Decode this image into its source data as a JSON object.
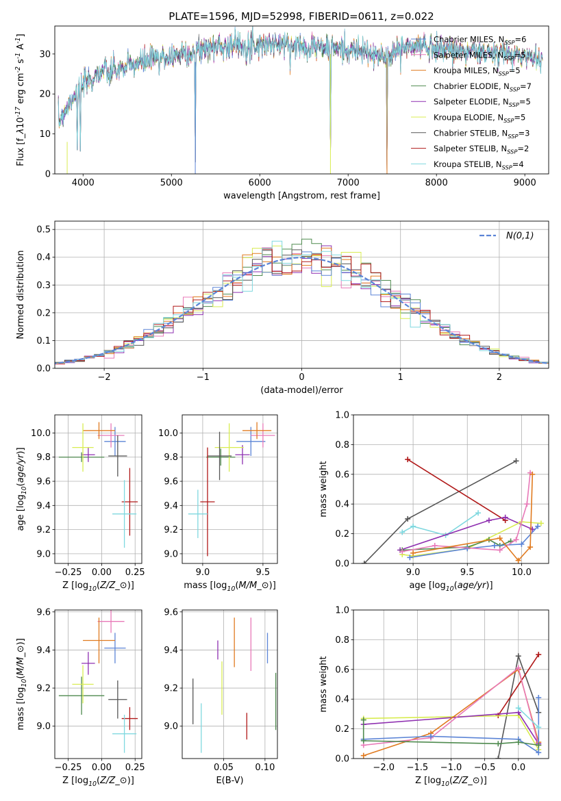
{
  "title": "PLATE=1596, MJD=52998, FIBERID=0611, z=0.022",
  "colors": {
    "Chabrier MILES": "#5b84d6",
    "Salpeter MILES": "#e879b8",
    "Kroupa MILES": "#e07a1f",
    "Chabrier ELODIE": "#4e8a4e",
    "Salpeter ELODIE": "#8e2fb0",
    "Kroupa ELODIE": "#d8ec50",
    "Chabrier STELIB": "#555555",
    "Salpeter STELIB": "#b01818",
    "Kroupa STELIB": "#7fd8df",
    "normal_curve": "#5b84d6"
  },
  "chart_data": [
    {
      "type": "line",
      "name": "spectrum",
      "xlabel": "wavelength [Angstrom, rest frame]",
      "ylabel": "Flux [f$_\\lambda$10$^{-17}$ erg cm$^{-2}$ s$^{-1}$ A$^{-1}$]",
      "xlim": [
        3680,
        9270
      ],
      "ylim": [
        0,
        37
      ],
      "xticks": [
        4000,
        5000,
        6000,
        7000,
        8000,
        9000
      ],
      "yticks": [
        0,
        10,
        20,
        30
      ],
      "legend_position": "upper-right",
      "legend": [
        {
          "label": "Chabrier MILES, N$_{SSP}$=6"
        },
        {
          "label": "Salpeter MILES, N$_{SSP}$=5"
        },
        {
          "label": "Kroupa MILES, N$_{SSP}$=5"
        },
        {
          "label": "Chabrier ELODIE, N$_{SSP}$=7"
        },
        {
          "label": "Salpeter ELODIE, N$_{SSP}$=5"
        },
        {
          "label": "Kroupa ELODIE, N$_{SSP}$=5"
        },
        {
          "label": "Chabrier STELIB, N$_{SSP}$=3"
        },
        {
          "label": "Salpeter STELIB, N$_{SSP}$=2"
        },
        {
          "label": "Kroupa STELIB, N$_{SSP}$=4"
        }
      ],
      "continuum": [
        [
          3720,
          13
        ],
        [
          3800,
          16
        ],
        [
          3900,
          20
        ],
        [
          4000,
          22
        ],
        [
          4100,
          24
        ],
        [
          4200,
          25.5
        ],
        [
          4400,
          26
        ],
        [
          4600,
          27.5
        ],
        [
          4800,
          29
        ],
        [
          5000,
          29.5
        ],
        [
          5200,
          30.5
        ],
        [
          5400,
          31.5
        ],
        [
          5600,
          32
        ],
        [
          5800,
          32.5
        ],
        [
          6000,
          32.5
        ],
        [
          6200,
          32.5
        ],
        [
          6400,
          32
        ],
        [
          6600,
          32
        ],
        [
          6800,
          31.5
        ],
        [
          7000,
          31
        ],
        [
          7200,
          30.5
        ],
        [
          7400,
          29
        ],
        [
          7600,
          31.5
        ],
        [
          7800,
          32
        ],
        [
          8000,
          31.5
        ],
        [
          8200,
          31
        ],
        [
          8400,
          30.5
        ],
        [
          8600,
          30
        ],
        [
          8800,
          30
        ],
        [
          9000,
          29.5
        ],
        [
          9200,
          29
        ]
      ],
      "dips": [
        [
          3934,
          5
        ],
        [
          3969,
          5
        ],
        [
          4101,
          20
        ],
        [
          4300,
          21
        ],
        [
          4861,
          24
        ],
        [
          5175,
          26
        ],
        [
          5270,
          0
        ],
        [
          5890,
          27
        ],
        [
          6563,
          29
        ],
        [
          6800,
          0
        ],
        [
          7250,
          30
        ],
        [
          7440,
          0
        ]
      ]
    },
    {
      "type": "bar",
      "name": "residual-histogram",
      "xlabel": "(data-model)/error",
      "ylabel": "Normed distribution",
      "xlim": [
        -2.5,
        2.5
      ],
      "ylim": [
        0,
        0.53
      ],
      "xticks": [
        -2,
        -1,
        0,
        1,
        2
      ],
      "yticks": [
        0.0,
        0.1,
        0.2,
        0.3,
        0.4,
        0.5
      ],
      "legend_position": "upper-right",
      "normal_label": "$\\mathcal{N}(0,1)$",
      "bin_width": 0.1
    },
    {
      "type": "scatter",
      "name": "age-vs-Z",
      "xlabel": "Z [log$_{10}$($Z/Z_\\odot$)]",
      "ylabel": "age  [log$_{10}$($age/yr$)]",
      "xlim": [
        -0.35,
        0.3
      ],
      "ylim": [
        8.92,
        10.15
      ],
      "xticks": [
        -0.25,
        0.0,
        0.25
      ],
      "yticks": [
        9.0,
        9.2,
        9.4,
        9.6,
        9.8,
        10.0
      ],
      "points": [
        {
          "model": "Chabrier MILES",
          "x": 0.1,
          "xerr": 0.08,
          "y": 9.93,
          "yerr": 0.12
        },
        {
          "model": "Salpeter MILES",
          "x": 0.07,
          "xerr": 0.1,
          "y": 9.98,
          "yerr": 0.1
        },
        {
          "model": "Kroupa MILES",
          "x": -0.02,
          "xerr": 0.12,
          "y": 10.02,
          "yerr": 0.07
        },
        {
          "model": "Chabrier ELODIE",
          "x": -0.15,
          "xerr": 0.17,
          "y": 9.8,
          "yerr": 0.04
        },
        {
          "model": "Salpeter ELODIE",
          "x": -0.1,
          "xerr": 0.05,
          "y": 9.82,
          "yerr": 0.06
        },
        {
          "model": "Kroupa ELODIE",
          "x": -0.14,
          "xerr": 0.08,
          "y": 9.88,
          "yerr": 0.2
        },
        {
          "model": "Chabrier STELIB",
          "x": 0.12,
          "xerr": 0.07,
          "y": 9.81,
          "yerr": 0.17
        },
        {
          "model": "Salpeter STELIB",
          "x": 0.21,
          "xerr": 0.06,
          "y": 9.43,
          "yerr": 0.28
        },
        {
          "model": "Kroupa STELIB",
          "x": 0.17,
          "xerr": 0.09,
          "y": 9.33,
          "yerr": 0.28
        }
      ]
    },
    {
      "type": "scatter",
      "name": "age-vs-mass",
      "xlabel": "mass [log$_{10}$($M/M_\\odot$)]",
      "ylabel": "",
      "xlim": [
        8.83,
        9.62
      ],
      "ylim": [
        8.92,
        10.15
      ],
      "xticks": [
        9.0,
        9.5
      ],
      "yticks": [
        9.0,
        9.2,
        9.4,
        9.6,
        9.8,
        10.0
      ],
      "points": [
        {
          "model": "Chabrier MILES",
          "x": 9.4,
          "xerr": 0.12,
          "y": 9.93,
          "yerr": 0.12
        },
        {
          "model": "Salpeter MILES",
          "x": 9.5,
          "xerr": 0.1,
          "y": 9.98,
          "yerr": 0.1
        },
        {
          "model": "Kroupa MILES",
          "x": 9.45,
          "xerr": 0.12,
          "y": 10.02,
          "yerr": 0.07
        },
        {
          "model": "Chabrier ELODIE",
          "x": 9.15,
          "xerr": 0.12,
          "y": 9.8,
          "yerr": 0.07
        },
        {
          "model": "Salpeter ELODIE",
          "x": 9.33,
          "xerr": 0.06,
          "y": 9.82,
          "yerr": 0.08
        },
        {
          "model": "Kroupa ELODIE",
          "x": 9.22,
          "xerr": 0.12,
          "y": 9.88,
          "yerr": 0.2
        },
        {
          "model": "Chabrier STELIB",
          "x": 9.14,
          "xerr": 0.1,
          "y": 9.81,
          "yerr": 0.2
        },
        {
          "model": "Salpeter STELIB",
          "x": 9.04,
          "xerr": 0.06,
          "y": 9.43,
          "yerr": 0.45
        },
        {
          "model": "Kroupa STELIB",
          "x": 8.96,
          "xerr": 0.08,
          "y": 9.33,
          "yerr": 0.2
        }
      ]
    },
    {
      "type": "line",
      "name": "mass-weight-vs-age",
      "xlabel": "age  [log$_{10}$($age/yr$)]",
      "ylabel": "mass weight",
      "xlim": [
        8.45,
        10.25
      ],
      "ylim": [
        0,
        1.0
      ],
      "xticks": [
        9.0,
        9.5,
        10.0
      ],
      "yticks": [
        0.0,
        0.2,
        0.4,
        0.6,
        0.8,
        1.0
      ],
      "series": [
        {
          "model": "Chabrier STELIB",
          "x": [
            8.55,
            8.95,
            9.95
          ],
          "y": [
            0.0,
            0.3,
            0.69
          ]
        },
        {
          "model": "Salpeter STELIB",
          "x": [
            8.95,
            9.85
          ],
          "y": [
            0.7,
            0.29
          ]
        },
        {
          "model": "Kroupa STELIB",
          "x": [
            8.9,
            9.0,
            9.3,
            9.6
          ],
          "y": [
            0.21,
            0.25,
            0.19,
            0.34
          ]
        },
        {
          "model": "Salpeter ELODIE",
          "x": [
            8.88,
            9.7,
            9.85,
            10.1
          ],
          "y": [
            0.09,
            0.29,
            0.31,
            0.23
          ]
        },
        {
          "model": "Kroupa ELODIE",
          "x": [
            8.9,
            9.0,
            9.5,
            10.0,
            10.18
          ],
          "y": [
            0.06,
            0.05,
            0.1,
            0.28,
            0.27
          ]
        },
        {
          "model": "Chabrier ELODIE",
          "x": [
            8.9,
            9.5,
            9.7,
            9.8,
            9.9
          ],
          "y": [
            0.09,
            0.11,
            0.16,
            0.12,
            0.15
          ]
        },
        {
          "model": "Chabrier MILES",
          "x": [
            8.97,
            9.5,
            9.75,
            10.0,
            10.15
          ],
          "y": [
            0.04,
            0.1,
            0.12,
            0.13,
            0.25
          ]
        },
        {
          "model": "Salpeter MILES",
          "x": [
            8.9,
            9.2,
            9.8,
            9.95,
            10.05,
            10.08
          ],
          "y": [
            0.08,
            0.12,
            0.09,
            0.16,
            0.4,
            0.61
          ]
        },
        {
          "model": "Kroupa MILES",
          "x": [
            9.0,
            9.8,
            9.97,
            10.08,
            10.1
          ],
          "y": [
            0.07,
            0.17,
            0.02,
            0.11,
            0.6
          ]
        }
      ]
    },
    {
      "type": "scatter",
      "name": "mass-vs-Z",
      "xlabel": "Z [log$_{10}$($Z/Z_\\odot$)]",
      "ylabel": "mass [log$_{10}$($M/M_\\odot$)]",
      "xlim": [
        -0.35,
        0.3
      ],
      "ylim": [
        8.83,
        9.61
      ],
      "xticks": [
        -0.25,
        0.0,
        0.25
      ],
      "yticks": [
        9.0,
        9.2,
        9.4,
        9.6
      ],
      "points": [
        {
          "model": "Chabrier MILES",
          "x": 0.1,
          "xerr": 0.08,
          "y": 9.41,
          "yerr": 0.08
        },
        {
          "model": "Salpeter MILES",
          "x": 0.07,
          "xerr": 0.1,
          "y": 9.55,
          "yerr": 0.06
        },
        {
          "model": "Kroupa MILES",
          "x": -0.02,
          "xerr": 0.12,
          "y": 9.45,
          "yerr": 0.12
        },
        {
          "model": "Chabrier ELODIE",
          "x": -0.15,
          "xerr": 0.17,
          "y": 9.16,
          "yerr": 0.1
        },
        {
          "model": "Salpeter ELODIE",
          "x": -0.1,
          "xerr": 0.05,
          "y": 9.33,
          "yerr": 0.06
        },
        {
          "model": "Kroupa ELODIE",
          "x": -0.14,
          "xerr": 0.08,
          "y": 9.22,
          "yerr": 0.1
        },
        {
          "model": "Chabrier STELIB",
          "x": 0.12,
          "xerr": 0.07,
          "y": 9.14,
          "yerr": 0.1
        },
        {
          "model": "Salpeter STELIB",
          "x": 0.21,
          "xerr": 0.06,
          "y": 9.04,
          "yerr": 0.06
        },
        {
          "model": "Kroupa STELIB",
          "x": 0.17,
          "xerr": 0.09,
          "y": 8.96,
          "yerr": 0.1
        }
      ]
    },
    {
      "type": "scatter",
      "name": "mass-vs-EBV",
      "xlabel": "E(B-V)",
      "ylabel": "",
      "xlim": [
        0.0,
        0.115
      ],
      "ylim": [
        8.83,
        9.61
      ],
      "xticks": [
        0.05,
        0.1
      ],
      "yticks": [
        9.0,
        9.2,
        9.4,
        9.6
      ],
      "points": [
        {
          "model": "Chabrier MILES",
          "x": 0.103,
          "xerr": 0.0,
          "y": 9.41,
          "yerr": 0.08
        },
        {
          "model": "Salpeter MILES",
          "x": 0.083,
          "xerr": 0.0,
          "y": 9.43,
          "yerr": 0.14
        },
        {
          "model": "Kroupa MILES",
          "x": 0.063,
          "xerr": 0.0,
          "y": 9.44,
          "yerr": 0.13
        },
        {
          "model": "Chabrier ELODIE",
          "x": 0.113,
          "xerr": 0.0,
          "y": 9.13,
          "yerr": 0.15
        },
        {
          "model": "Salpeter ELODIE",
          "x": 0.043,
          "xerr": 0.0,
          "y": 9.4,
          "yerr": 0.05
        },
        {
          "model": "Kroupa ELODIE",
          "x": 0.048,
          "xerr": 0.0,
          "y": 9.2,
          "yerr": 0.14
        },
        {
          "model": "Chabrier STELIB",
          "x": 0.013,
          "xerr": 0.0,
          "y": 9.13,
          "yerr": 0.12
        },
        {
          "model": "Salpeter STELIB",
          "x": 0.078,
          "xerr": 0.0,
          "y": 9.0,
          "yerr": 0.07
        },
        {
          "model": "Kroupa STELIB",
          "x": 0.023,
          "xerr": 0.0,
          "y": 8.99,
          "yerr": 0.13
        }
      ]
    },
    {
      "type": "line",
      "name": "mass-weight-vs-Z",
      "xlabel": "Z [log$_{10}$($Z/Z_\\odot$)]",
      "ylabel": "mass weight",
      "xlim": [
        -2.45,
        0.45
      ],
      "ylim": [
        0,
        1.0
      ],
      "xticks": [
        -2.0,
        -1.5,
        -1.0,
        -0.5,
        0.0
      ],
      "yticks": [
        0.0,
        0.2,
        0.4,
        0.6,
        0.8,
        1.0
      ],
      "series": [
        {
          "model": "Chabrier STELIB",
          "x": [
            -0.3,
            0.0,
            0.3
          ],
          "y": [
            0.0,
            0.69,
            0.31
          ]
        },
        {
          "model": "Salpeter STELIB",
          "x": [
            -0.3,
            0.3
          ],
          "y": [
            0.29,
            0.7
          ]
        },
        {
          "model": "Kroupa ELODIE",
          "x": [
            -2.3,
            0.0,
            0.3
          ],
          "y": [
            0.27,
            0.29,
            0.06
          ]
        },
        {
          "model": "Salpeter ELODIE",
          "x": [
            -2.3,
            0.0,
            0.3
          ],
          "y": [
            0.23,
            0.31,
            0.1
          ]
        },
        {
          "model": "Kroupa MILES",
          "x": [
            -2.3,
            -1.3,
            0.0,
            0.3
          ],
          "y": [
            0.02,
            0.17,
            0.6,
            0.11
          ]
        },
        {
          "model": "Salpeter MILES",
          "x": [
            -2.3,
            -1.3,
            0.0,
            0.3
          ],
          "y": [
            0.09,
            0.14,
            0.61,
            0.09
          ]
        },
        {
          "model": "Chabrier MILES",
          "x": [
            -2.3,
            -1.3,
            0.0,
            0.3,
            0.3
          ],
          "y": [
            0.13,
            0.15,
            0.13,
            0.04,
            0.41
          ]
        },
        {
          "model": "Chabrier ELODIE",
          "x": [
            -2.3,
            -2.3,
            -0.3,
            0.0,
            0.3
          ],
          "y": [
            0.26,
            0.12,
            0.1,
            0.11,
            0.09
          ]
        },
        {
          "model": "Kroupa STELIB",
          "x": [
            0.0,
            0.3
          ],
          "y": [
            0.34,
            0.21
          ]
        }
      ]
    }
  ]
}
